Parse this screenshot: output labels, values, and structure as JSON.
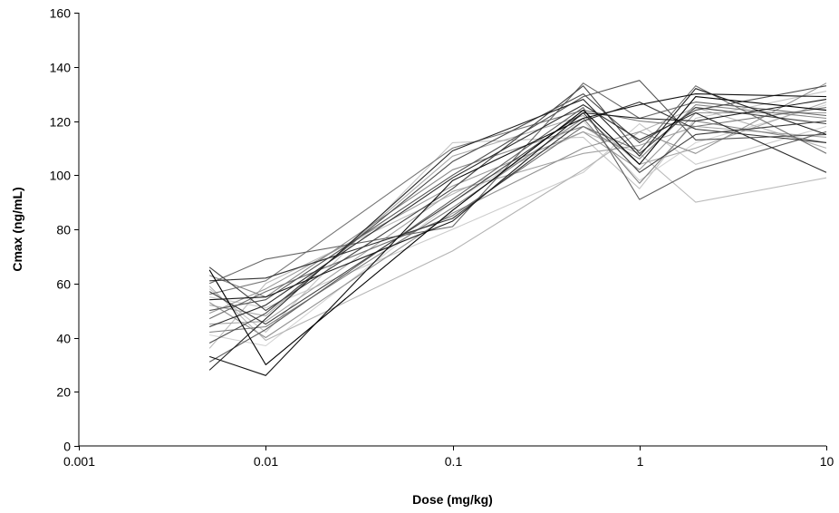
{
  "chart_data": {
    "type": "line",
    "title": "",
    "xlabel": "Dose (mg/kg)",
    "ylabel": "Cmax (ng/mL)",
    "x_scale": "log",
    "xlim": [
      0.001,
      10
    ],
    "ylim": [
      0,
      160
    ],
    "x_ticks": [
      0.001,
      0.01,
      0.1,
      1,
      10
    ],
    "x_tick_labels": [
      "0.001",
      "0.01",
      "0.1",
      "1",
      "10"
    ],
    "y_ticks": [
      0,
      20,
      40,
      60,
      80,
      100,
      120,
      140,
      160
    ],
    "y_tick_labels": [
      "0",
      "20",
      "40",
      "60",
      "80",
      "100",
      "120",
      "140",
      "160"
    ],
    "grid": false,
    "legend": "none",
    "x": [
      0.005,
      0.01,
      0.1,
      0.5,
      1,
      2,
      10
    ],
    "series": [
      {
        "color": "#000000",
        "values": [
          65,
          30,
          87,
          124,
          104,
          129,
          124
        ]
      },
      {
        "color": "#111111",
        "values": [
          33,
          26,
          98,
          121,
          126,
          130,
          129
        ]
      },
      {
        "color": "#222222",
        "values": [
          28,
          47,
          109,
          128,
          107,
          132,
          115
        ]
      },
      {
        "color": "#1a1a1a",
        "values": [
          54,
          55,
          83,
          123,
          121,
          120,
          128
        ]
      },
      {
        "color": "#333333",
        "values": [
          61,
          62,
          84,
          120,
          127,
          117,
          112
        ]
      },
      {
        "color": "#2b2b2b",
        "values": [
          44,
          52,
          99,
          126,
          113,
          123,
          101
        ]
      },
      {
        "color": "#3c3c3c",
        "values": [
          57,
          45,
          90,
          123,
          101,
          115,
          120
        ]
      },
      {
        "color": "#444444",
        "values": [
          66,
          50,
          95,
          133,
          108,
          125,
          119
        ]
      },
      {
        "color": "#4d4d4d",
        "values": [
          38,
          49,
          105,
          130,
          112,
          124,
          133
        ]
      },
      {
        "color": "#555555",
        "values": [
          50,
          54,
          100,
          129,
          135,
          113,
          115
        ]
      },
      {
        "color": "#5e5e5e",
        "values": [
          31,
          43,
          91,
          125,
          91,
          102,
          116
        ]
      },
      {
        "color": "#666666",
        "values": [
          60,
          69,
          81,
          134,
          121,
          127,
          122
        ]
      },
      {
        "color": "#6f6f6f",
        "values": [
          47,
          57,
          85,
          118,
          109,
          133,
          108
        ]
      },
      {
        "color": "#777777",
        "values": [
          56,
          61,
          110,
          124,
          120,
          118,
          125
        ]
      },
      {
        "color": "#808080",
        "values": [
          42,
          44,
          88,
          121,
          97,
          120,
          112
        ]
      },
      {
        "color": "#888888",
        "values": [
          63,
          55,
          102,
          118,
          106,
          126,
          121
        ]
      },
      {
        "color": "#919191",
        "values": [
          53,
          40,
          86,
          110,
          116,
          108,
          134
        ]
      },
      {
        "color": "#999999",
        "values": [
          49,
          58,
          96,
          116,
          102,
          123,
          123
        ]
      },
      {
        "color": "#a2a2a2",
        "values": [
          45,
          46,
          94,
          108,
          111,
          118,
          114
        ]
      },
      {
        "color": "#aaaaaa",
        "values": [
          52,
          48,
          107,
          122,
          104,
          110,
          127
        ]
      },
      {
        "color": "#b3b3b3",
        "values": [
          59,
          39,
          72,
          102,
          116,
          125,
          110
        ]
      },
      {
        "color": "#bbbbbb",
        "values": [
          36,
          60,
          93,
          116,
          108,
          90,
          99
        ]
      },
      {
        "color": "#c4c4c4",
        "values": [
          58,
          42,
          112,
          114,
          95,
          121,
          131
        ]
      },
      {
        "color": "#cccccc",
        "values": [
          55,
          51,
          80,
          101,
          119,
          104,
          118
        ]
      },
      {
        "color": "#d2d2d2",
        "values": [
          41,
          37,
          90,
          120,
          98,
          112,
          126
        ]
      }
    ]
  }
}
